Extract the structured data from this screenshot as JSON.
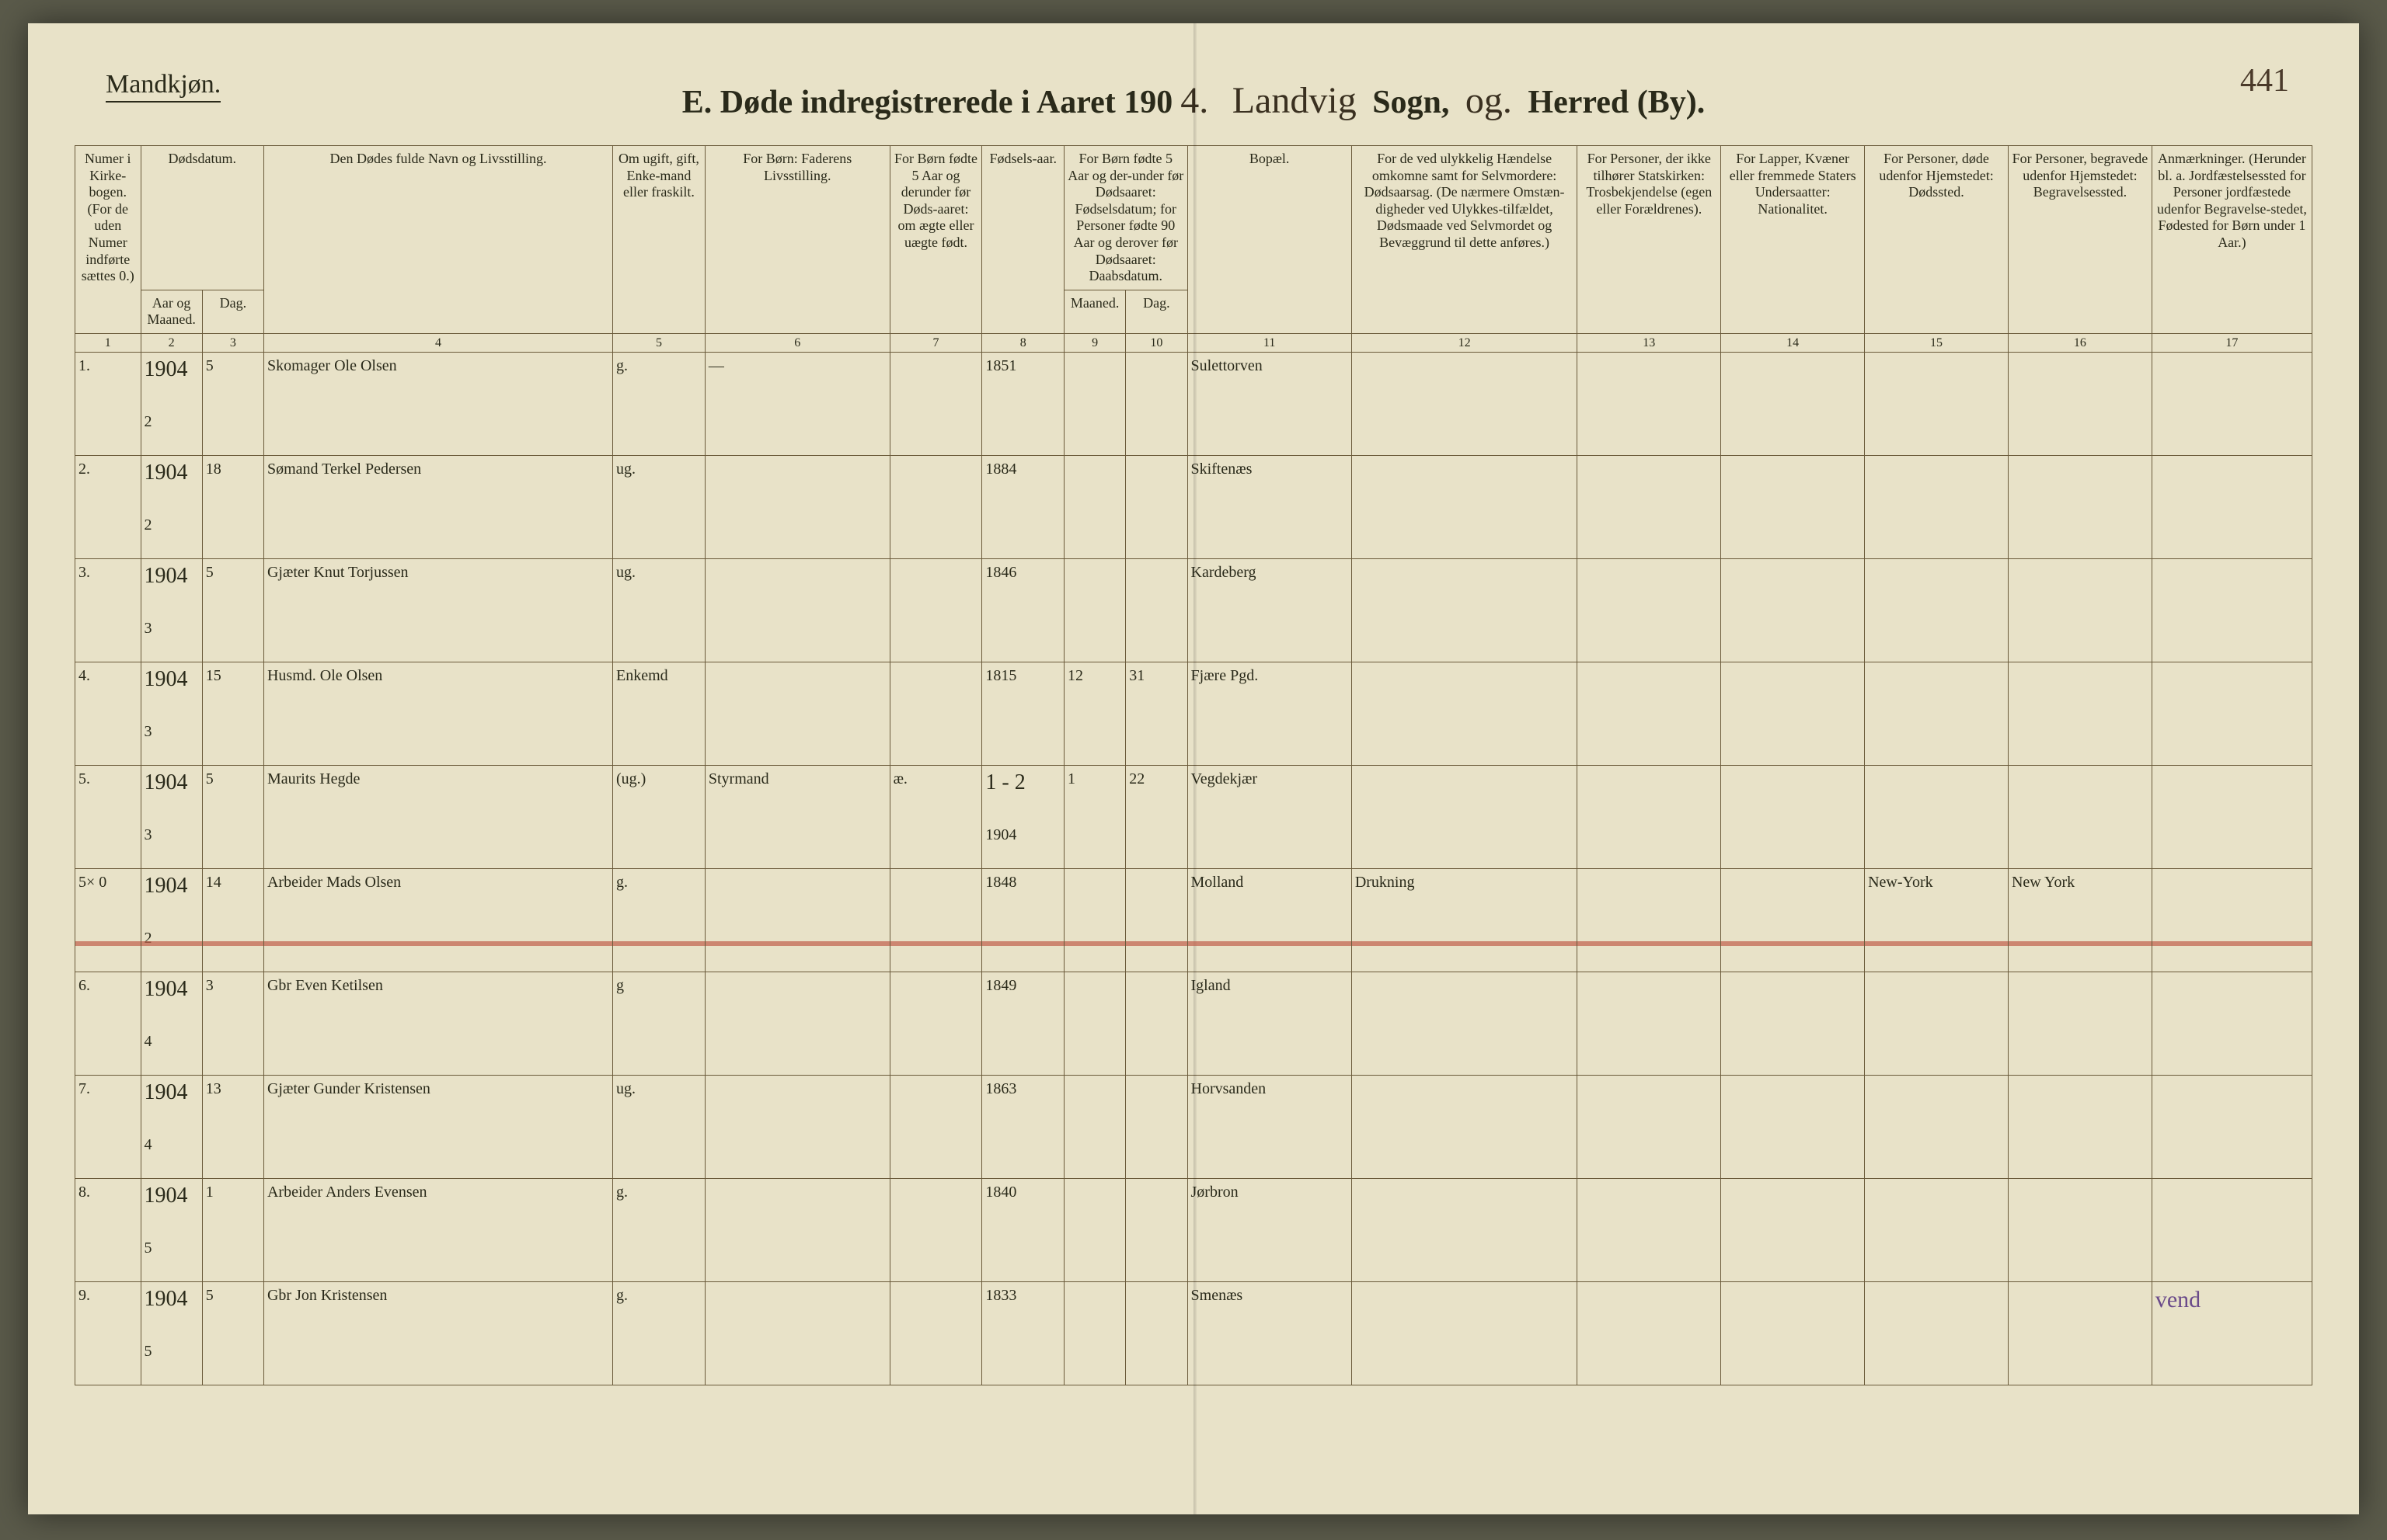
{
  "page_number": "441",
  "gender_label": "Mandkjøn.",
  "title": {
    "prefix": "E.   Døde indregistrerede i Aaret 190",
    "year_hand": "4.",
    "parish_hand": "Landvig",
    "sogn_label": "Sogn,",
    "district_hand": "og.",
    "herred_label": "Herred (By)."
  },
  "columns": {
    "c1": "Numer i Kirke-bogen. (For de uden Numer indførte sættes 0.)",
    "c2a": "Dødsdatum.",
    "c2": "Aar og Maaned.",
    "c3": "Dag.",
    "c4": "Den Dødes fulde Navn og Livsstilling.",
    "c5": "Om ugift, gift, Enke-mand eller fraskilt.",
    "c6": "For Børn: Faderens Livsstilling.",
    "c7": "For Børn fødte 5 Aar og derunder før Døds-aaret: om ægte eller uægte født.",
    "c8": "Fødsels-aar.",
    "c9_10": "For Børn fødte 5 Aar og der-under før Dødsaaret: Fødselsdatum; for Personer fødte 90 Aar og derover før Dødsaaret: Daabsdatum.",
    "c9": "Maaned.",
    "c10": "Dag.",
    "c11": "Bopæl.",
    "c12": "For de ved ulykkelig Hændelse omkomne samt for Selvmordere: Dødsaarsag. (De nærmere Omstæn-digheder ved Ulykkes-tilfældet, Dødsmaade ved Selvmordet og Bevæggrund til dette anføres.)",
    "c13": "For Personer, der ikke tilhører Statskirken: Trosbekjendelse (egen eller Forældrenes).",
    "c14": "For Lapper, Kvæner eller fremmede Staters Undersaatter: Nationalitet.",
    "c15": "For Personer, døde udenfor Hjemstedet: Dødssted.",
    "c16": "For Personer, begravede udenfor Hjemstedet: Begravelsessted.",
    "c17": "Anmærkninger. (Herunder bl. a. Jordfæstelsessted for Personer jordfæstede udenfor Begravelse-stedet, Fødested for Børn under 1 Aar.)"
  },
  "colnums": [
    "1",
    "2",
    "3",
    "4",
    "5",
    "6",
    "7",
    "8",
    "9",
    "10",
    "11",
    "12",
    "13",
    "14",
    "15",
    "16",
    "17"
  ],
  "rows": [
    {
      "num": "1.",
      "year": "1904",
      "month": "2",
      "day": "5",
      "name": "Skomager Ole Olsen",
      "status": "g.",
      "father": "—",
      "legit": "",
      "birth": "1851",
      "bm": "",
      "bd": "",
      "residence": "Sulettorven",
      "cause": "",
      "faith": "",
      "nat": "",
      "deathplace": "",
      "burialplace": "",
      "remarks": ""
    },
    {
      "num": "2.",
      "year": "1904",
      "month": "2",
      "day": "18",
      "name": "Sømand Terkel Pedersen",
      "status": "ug.",
      "father": "",
      "legit": "",
      "birth": "1884",
      "bm": "",
      "bd": "",
      "residence": "Skiftenæs",
      "cause": "",
      "faith": "",
      "nat": "",
      "deathplace": "",
      "burialplace": "",
      "remarks": ""
    },
    {
      "num": "3.",
      "year": "1904",
      "month": "3",
      "day": "5",
      "name": "Gjæter Knut Torjussen",
      "status": "ug.",
      "father": "",
      "legit": "",
      "birth": "1846",
      "bm": "",
      "bd": "",
      "residence": "Kardeberg",
      "cause": "",
      "faith": "",
      "nat": "",
      "deathplace": "",
      "burialplace": "",
      "remarks": ""
    },
    {
      "num": "4.",
      "year": "1904",
      "month": "3",
      "day": "15",
      "name": "Husmd. Ole Olsen",
      "status": "Enkemd",
      "father": "",
      "legit": "",
      "birth": "1815",
      "bm": "12",
      "bd": "31",
      "residence": "Fjære Pgd.",
      "cause": "",
      "faith": "",
      "nat": "",
      "deathplace": "",
      "burialplace": "",
      "remarks": ""
    },
    {
      "num": "5.",
      "year": "1904",
      "month": "3",
      "day": "5",
      "name": "Maurits Hegde",
      "status": "(ug.)",
      "father": "Styrmand",
      "legit": "æ.",
      "birth": "1904",
      "birth_above": "1 - 2",
      "bm": "1",
      "bd": "22",
      "residence": "Vegdekjær",
      "cause": "",
      "faith": "",
      "nat": "",
      "deathplace": "",
      "burialplace": "",
      "remarks": ""
    },
    {
      "num": "5× 0",
      "year": "1904",
      "month": "2",
      "day": "14",
      "name": "Arbeider Mads Olsen",
      "status": "g.",
      "father": "",
      "legit": "",
      "birth": "1848",
      "bm": "",
      "bd": "",
      "residence": "Molland",
      "cause": "Drukning",
      "faith": "",
      "nat": "",
      "deathplace": "New-York",
      "burialplace": "New York",
      "remarks": "",
      "struck": true
    },
    {
      "num": "6.",
      "year": "1904",
      "month": "4",
      "day": "3",
      "name": "Gbr Even Ketilsen",
      "status": "g",
      "father": "",
      "legit": "",
      "birth": "1849",
      "bm": "",
      "bd": "",
      "residence": "Igland",
      "cause": "",
      "faith": "",
      "nat": "",
      "deathplace": "",
      "burialplace": "",
      "remarks": ""
    },
    {
      "num": "7.",
      "year": "1904",
      "month": "4",
      "day": "13",
      "name": "Gjæter Gunder Kristensen",
      "status": "ug.",
      "father": "",
      "legit": "",
      "birth": "1863",
      "bm": "",
      "bd": "",
      "residence": "Horvsanden",
      "cause": "",
      "faith": "",
      "nat": "",
      "deathplace": "",
      "burialplace": "",
      "remarks": ""
    },
    {
      "num": "8.",
      "year": "1904",
      "month": "5",
      "day": "1",
      "name": "Arbeider Anders Evensen",
      "status": "g.",
      "father": "",
      "legit": "",
      "birth": "1840",
      "bm": "",
      "bd": "",
      "residence": "Jørbron",
      "cause": "",
      "faith": "",
      "nat": "",
      "deathplace": "",
      "burialplace": "",
      "remarks": ""
    },
    {
      "num": "9.",
      "year": "1904",
      "month": "5",
      "day": "5",
      "name": "Gbr Jon Kristensen",
      "status": "g.",
      "father": "",
      "legit": "",
      "birth": "1833",
      "bm": "",
      "bd": "",
      "residence": "Smenæs",
      "cause": "",
      "faith": "",
      "nat": "",
      "deathplace": "",
      "burialplace": "",
      "remarks": "vend"
    }
  ],
  "col_widths_pct": [
    3.2,
    3.0,
    3.0,
    17,
    4.5,
    9,
    4.5,
    4.0,
    3.0,
    3.0,
    8,
    11,
    7,
    7,
    7,
    7,
    7.8
  ],
  "colors": {
    "paper": "#e8e2c8",
    "ink_print": "#2a2a1a",
    "ink_hand": "#3a3020",
    "rule": "#6a5a3a",
    "red_strike": "#c0604a",
    "annotation": "#6a4a8a"
  }
}
